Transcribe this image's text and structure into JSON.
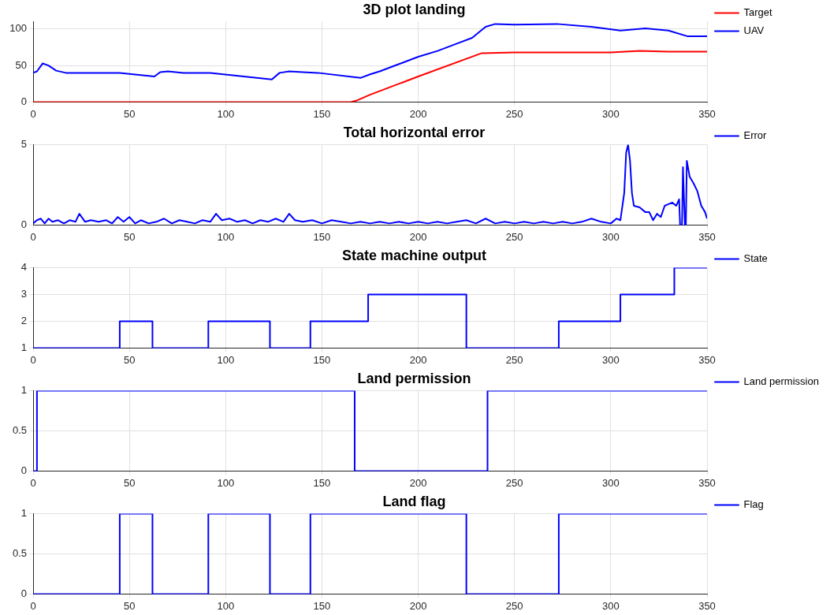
{
  "chart_data": [
    {
      "type": "line",
      "title": "3D plot landing",
      "xlim": [
        0,
        350
      ],
      "xticks": [
        0,
        50,
        100,
        150,
        200,
        250,
        300,
        350
      ],
      "ylim": [
        0,
        110
      ],
      "yticks": [
        0,
        50,
        100
      ],
      "grid": true,
      "legend": "top right",
      "series": [
        {
          "name": "Target",
          "color": "#ff0000",
          "x": [
            0,
            165,
            168,
            175,
            200,
            233,
            250,
            300,
            315,
            330,
            350
          ],
          "values": [
            0,
            0,
            2,
            10,
            35,
            67,
            68,
            68,
            70,
            69,
            69
          ]
        },
        {
          "name": "UAV",
          "color": "#0000ff",
          "x": [
            0,
            2,
            5,
            8,
            12,
            17,
            45,
            63,
            66,
            70,
            78,
            92,
            124,
            128,
            133,
            140,
            148,
            170,
            175,
            180,
            190,
            200,
            210,
            220,
            228,
            235,
            240,
            250,
            272,
            290,
            305,
            318,
            330,
            340,
            350
          ],
          "values": [
            40,
            42,
            53,
            50,
            43,
            40,
            40,
            35,
            41,
            42,
            40,
            40,
            31,
            40,
            42,
            41,
            40,
            33,
            38,
            42,
            52,
            62,
            70,
            80,
            88,
            103,
            107,
            106,
            107,
            103,
            98,
            101,
            98,
            90,
            90
          ]
        }
      ]
    },
    {
      "type": "line",
      "title": "Total horizontal error",
      "xlim": [
        0,
        350
      ],
      "xticks": [
        0,
        50,
        100,
        150,
        200,
        250,
        300,
        350
      ],
      "ylim": [
        0,
        5
      ],
      "yticks": [
        0,
        5
      ],
      "grid": true,
      "legend": "top right",
      "series": [
        {
          "name": "Error",
          "color": "#0000ff",
          "x": [
            0,
            2,
            4,
            6,
            8,
            10,
            13,
            16,
            19,
            22,
            24,
            27,
            30,
            34,
            38,
            41,
            44,
            47,
            50,
            53,
            56,
            60,
            64,
            68,
            72,
            76,
            80,
            84,
            88,
            92,
            95,
            98,
            102,
            106,
            110,
            114,
            118,
            122,
            126,
            130,
            133,
            136,
            140,
            145,
            150,
            155,
            160,
            165,
            170,
            175,
            180,
            185,
            190,
            195,
            200,
            205,
            210,
            215,
            220,
            225,
            230,
            235,
            240,
            245,
            250,
            255,
            260,
            265,
            270,
            275,
            280,
            285,
            290,
            295,
            300,
            303,
            305,
            307,
            308,
            309,
            310,
            311,
            312,
            315,
            318,
            320,
            322,
            324,
            326,
            328,
            330,
            332,
            334,
            335.5,
            336,
            337,
            337.5,
            338.5,
            339,
            339.5,
            341,
            343,
            345,
            347,
            349,
            350
          ],
          "values": [
            0.1,
            0.3,
            0.4,
            0.1,
            0.4,
            0.2,
            0.3,
            0.1,
            0.3,
            0.2,
            0.7,
            0.2,
            0.3,
            0.2,
            0.3,
            0.1,
            0.5,
            0.2,
            0.5,
            0.1,
            0.3,
            0.1,
            0.2,
            0.4,
            0.1,
            0.3,
            0.2,
            0.1,
            0.3,
            0.2,
            0.7,
            0.3,
            0.4,
            0.2,
            0.3,
            0.1,
            0.3,
            0.2,
            0.4,
            0.2,
            0.7,
            0.3,
            0.2,
            0.3,
            0.1,
            0.3,
            0.2,
            0.1,
            0.2,
            0.1,
            0.2,
            0.1,
            0.2,
            0.1,
            0.2,
            0.1,
            0.2,
            0.1,
            0.2,
            0.3,
            0.1,
            0.4,
            0.1,
            0.2,
            0.1,
            0.2,
            0.1,
            0.2,
            0.1,
            0.2,
            0.1,
            0.2,
            0.4,
            0.2,
            0.1,
            0.4,
            0.3,
            2,
            4.5,
            5,
            4,
            2,
            1.2,
            1.1,
            0.8,
            0.8,
            0.3,
            0.7,
            0.5,
            1.2,
            1.3,
            1.4,
            1.2,
            1.6,
            0,
            0,
            3.6,
            0,
            0,
            4,
            3,
            2.6,
            2.1,
            1.2,
            0.8,
            0.4
          ]
        }
      ]
    },
    {
      "type": "step",
      "title": "State machine output",
      "xlim": [
        0,
        350
      ],
      "xticks": [
        0,
        50,
        100,
        150,
        200,
        250,
        300,
        350
      ],
      "ylim": [
        1,
        4
      ],
      "yticks": [
        1,
        2,
        3,
        4
      ],
      "grid": true,
      "legend": "top right",
      "series": [
        {
          "name": "State",
          "color": "#0000ff",
          "x": [
            0,
            45,
            62,
            91,
            123,
            144,
            174,
            225,
            273,
            305,
            333,
            350
          ],
          "values": [
            1,
            2,
            1,
            2,
            1,
            2,
            3,
            1,
            2,
            3,
            4,
            4
          ]
        }
      ]
    },
    {
      "type": "step",
      "title": "Land permission",
      "xlim": [
        0,
        350
      ],
      "xticks": [
        0,
        50,
        100,
        150,
        200,
        250,
        300,
        350
      ],
      "ylim": [
        0,
        1
      ],
      "yticks": [
        0,
        0.5,
        1
      ],
      "grid": true,
      "legend": "top right",
      "series": [
        {
          "name": "Land permission",
          "color": "#0000ff",
          "x": [
            0,
            2,
            167,
            236,
            350
          ],
          "values": [
            0,
            1,
            0,
            1,
            1
          ]
        }
      ]
    },
    {
      "type": "step",
      "title": "Land flag",
      "xlim": [
        0,
        350
      ],
      "xticks": [
        0,
        50,
        100,
        150,
        200,
        250,
        300,
        350
      ],
      "ylim": [
        0,
        1
      ],
      "yticks": [
        0,
        0.5,
        1
      ],
      "grid": true,
      "legend": "top right",
      "series": [
        {
          "name": "Flag",
          "color": "#0000ff",
          "x": [
            0,
            45,
            62,
            91,
            123,
            144,
            225,
            273,
            350
          ],
          "values": [
            0,
            1,
            0,
            1,
            0,
            1,
            0,
            1,
            1
          ]
        }
      ]
    }
  ]
}
